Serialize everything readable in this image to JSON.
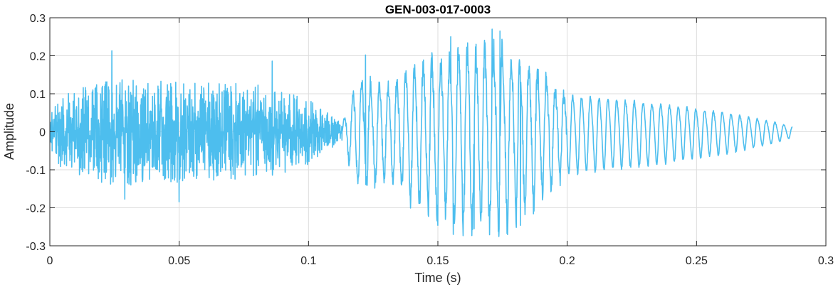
{
  "chart_data": {
    "type": "line",
    "title": "GEN-003-017-0003",
    "xlabel": "Time (s)",
    "ylabel": "Amplitude",
    "xlim": [
      0,
      0.3
    ],
    "ylim": [
      -0.3,
      0.3
    ],
    "grid": true,
    "x_ticks": [
      0,
      0.05,
      0.1,
      0.15,
      0.2,
      0.25,
      0.3
    ],
    "x_tick_labels": [
      "0",
      "0.05",
      "0.1",
      "0.15",
      "0.2",
      "0.25",
      "0.3"
    ],
    "y_ticks": [
      -0.3,
      -0.2,
      -0.1,
      0,
      0.1,
      0.2,
      0.3
    ],
    "y_tick_labels": [
      "-0.3",
      "-0.2",
      "-0.1",
      "0",
      "0.1",
      "0.2",
      "0.3"
    ],
    "series": [
      {
        "color": "#4dbeee",
        "x_start": 0,
        "x_end": 0.287,
        "segments": [
          {
            "kind": "noise",
            "t": [
              0.0,
              0.003,
              0.01,
              0.025,
              0.05,
              0.085,
              0.1,
              0.108,
              0.113
            ],
            "amp": [
              0.04,
              0.1,
              0.12,
              0.15,
              0.14,
              0.13,
              0.09,
              0.05,
              0.025
            ]
          },
          {
            "kind": "oscillation",
            "t": [
              0.113,
              0.118,
              0.12,
              0.13,
              0.145,
              0.16,
              0.175,
              0.185,
              0.2,
              0.23,
              0.26,
              0.28,
              0.287
            ],
            "amp": [
              0.02,
              0.13,
              0.15,
              0.13,
              0.2,
              0.24,
              0.25,
              0.2,
              0.11,
              0.09,
              0.06,
              0.03,
              0.015
            ],
            "period": 0.0034
          }
        ],
        "peaks": [
          {
            "x": 0.024,
            "y": 0.213
          },
          {
            "x": 0.086,
            "y": 0.186
          },
          {
            "x": 0.122,
            "y": 0.202
          },
          {
            "x": 0.155,
            "y": 0.25
          },
          {
            "x": 0.171,
            "y": 0.27
          },
          {
            "x": 0.174,
            "y": 0.265
          }
        ],
        "troughs": [
          {
            "x": 0.029,
            "y": -0.177
          },
          {
            "x": 0.05,
            "y": -0.184
          },
          {
            "x": 0.15,
            "y": -0.246
          },
          {
            "x": 0.156,
            "y": -0.27
          },
          {
            "x": 0.164,
            "y": -0.255
          },
          {
            "x": 0.182,
            "y": -0.246
          }
        ]
      }
    ]
  }
}
